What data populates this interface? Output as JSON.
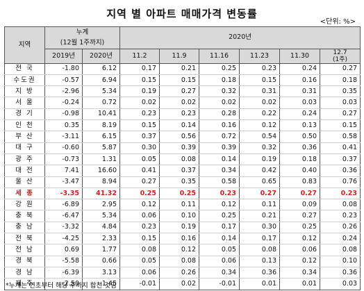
{
  "title": "지역 별 아파트 매매가격 변동률",
  "unit": "<단위: %>",
  "headers": {
    "region": "지역",
    "cumulative": "누계",
    "cumulative_sub": "(12월 1주까지)",
    "year_2020": "2020년",
    "cum_cols": [
      "2019년",
      "2020년"
    ],
    "week_cols": [
      "11.2",
      "11.9",
      "11.16",
      "11.23",
      "11.30"
    ],
    "last_col_line1": "12.7",
    "last_col_line2": "(1주)"
  },
  "rows": [
    {
      "region": "전  국",
      "c2019": "-1.80",
      "c2020": "6.12",
      "w": [
        "0.17",
        "0.21",
        "0.25",
        "0.23",
        "0.24",
        "0.27"
      ],
      "highlight": false
    },
    {
      "region": "수도권",
      "c2019": "-0.57",
      "c2020": "6.94",
      "w": [
        "0.15",
        "0.15",
        "0.18",
        "0.15",
        "0.16",
        "0.18"
      ],
      "highlight": false
    },
    {
      "region": "지  방",
      "c2019": "-2.96",
      "c2020": "5.34",
      "w": [
        "0.19",
        "0.27",
        "0.32",
        "0.31",
        "0.31",
        "0.35"
      ],
      "highlight": false
    },
    {
      "region": "서  울",
      "c2019": "-0.24",
      "c2020": "0.72",
      "w": [
        "0.02",
        "0.02",
        "0.02",
        "0.02",
        "0.03",
        "0.03"
      ],
      "highlight": false
    },
    {
      "region": "경  기",
      "c2019": "-0.98",
      "c2020": "10.41",
      "w": [
        "0.23",
        "0.23",
        "0.28",
        "0.22",
        "0.24",
        "0.27"
      ],
      "highlight": false
    },
    {
      "region": "인  천",
      "c2019": "0.35",
      "c2020": "8.19",
      "w": [
        "0.15",
        "0.14",
        "0.16",
        "0.12",
        "0.13",
        "0.15"
      ],
      "highlight": false
    },
    {
      "region": "부  산",
      "c2019": "-3.11",
      "c2020": "6.15",
      "w": [
        "0.37",
        "0.56",
        "0.72",
        "0.54",
        "0.50",
        "0.58"
      ],
      "highlight": false
    },
    {
      "region": "대  구",
      "c2019": "-0.60",
      "c2020": "5.87",
      "w": [
        "0.30",
        "0.39",
        "0.39",
        "0.32",
        "0.36",
        "0.41"
      ],
      "highlight": false
    },
    {
      "region": "광  주",
      "c2019": "-0.73",
      "c2020": "1.31",
      "w": [
        "0.05",
        "0.08",
        "0.14",
        "0.19",
        "0.18",
        "0.37"
      ],
      "highlight": false
    },
    {
      "region": "대  전",
      "c2019": "7.41",
      "c2020": "16.60",
      "w": [
        "0.41",
        "0.37",
        "0.34",
        "0.42",
        "0.40",
        "0.36"
      ],
      "highlight": false
    },
    {
      "region": "울  산",
      "c2019": "-3.47",
      "c2020": "8.94",
      "w": [
        "0.27",
        "0.35",
        "0.58",
        "0.65",
        "0.83",
        "0.76"
      ],
      "highlight": false
    },
    {
      "region": "세  종",
      "c2019": "-3.35",
      "c2020": "41.32",
      "w": [
        "0.25",
        "0.25",
        "0.23",
        "0.27",
        "0.27",
        "0.23"
      ],
      "highlight": true
    },
    {
      "region": "강  원",
      "c2019": "-6.89",
      "c2020": "2.95",
      "w": [
        "0.12",
        "0.11",
        "0.12",
        "0.11",
        "0.09",
        "0.08"
      ],
      "highlight": false
    },
    {
      "region": "충  북",
      "c2019": "-6.47",
      "c2020": "5.34",
      "w": [
        "0.06",
        "0.10",
        "0.25",
        "0.21",
        "0.27",
        "0.23"
      ],
      "highlight": false
    },
    {
      "region": "충  남",
      "c2019": "-3.32",
      "c2020": "4.84",
      "w": [
        "0.23",
        "0.19",
        "0.17",
        "0.30",
        "0.25",
        "0.26"
      ],
      "highlight": false
    },
    {
      "region": "전  북",
      "c2019": "-4.25",
      "c2020": "2.33",
      "w": [
        "0.15",
        "0.16",
        "0.14",
        "0.17",
        "0.12",
        "0.24"
      ],
      "highlight": false
    },
    {
      "region": "전  남",
      "c2019": "0.69",
      "c2020": "1.77",
      "w": [
        "0.08",
        "0.12",
        "0.05",
        "0.08",
        "0.06",
        "0.08"
      ],
      "highlight": false
    },
    {
      "region": "경  북",
      "c2019": "-5.58",
      "c2020": "0.66",
      "w": [
        "0.05",
        "0.08",
        "0.06",
        "0.13",
        "0.12",
        "0.10"
      ],
      "highlight": false
    },
    {
      "region": "경  남",
      "c2019": "-6.39",
      "c2020": "3.13",
      "w": [
        "0.06",
        "0.26",
        "0.34",
        "0.36",
        "0.34",
        "0.36"
      ],
      "highlight": false
    },
    {
      "region": "제  주",
      "c2019": "-2.50",
      "c2020": "-1.45",
      "w": [
        "-0.01",
        "0.02",
        "-0.01",
        "0.01",
        "0.01",
        "0.03"
      ],
      "highlight": false
    }
  ],
  "note": "*누계는 연초부터 해당 주까지 합친 것임"
}
